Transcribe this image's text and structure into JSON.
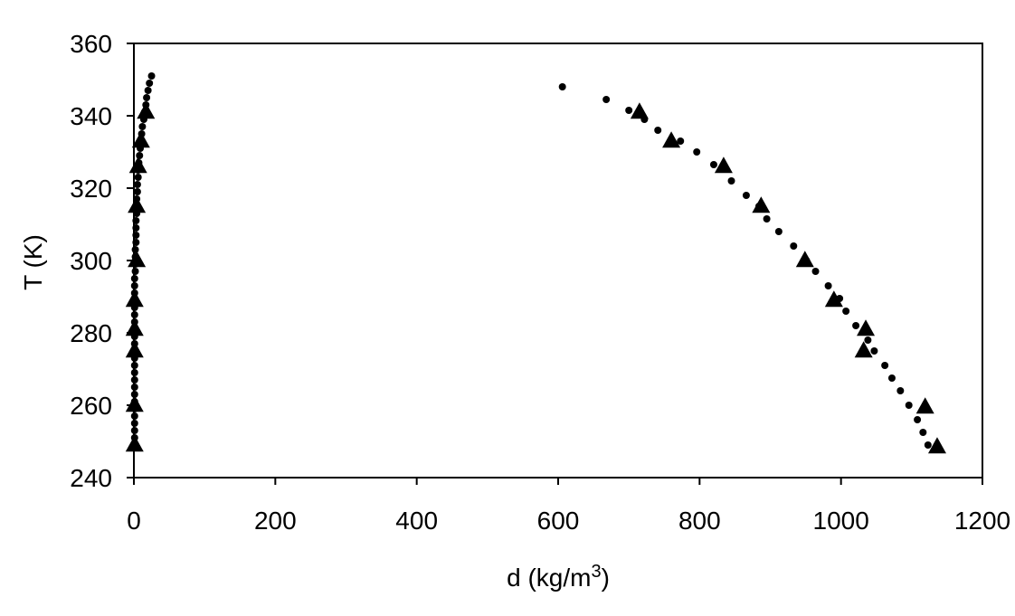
{
  "chart_data": {
    "type": "scatter",
    "xlabel": "d (kg/m",
    "xlabel_sup": "3",
    "xlabel_close": ")",
    "ylabel": "T (K)",
    "xlim": [
      0,
      1200
    ],
    "ylim": [
      240,
      360
    ],
    "x_ticks": [
      0,
      200,
      400,
      600,
      800,
      1000,
      1200
    ],
    "y_ticks": [
      240,
      260,
      280,
      300,
      320,
      340,
      360
    ],
    "grid": false,
    "legend": "none",
    "series": [
      {
        "marker": "dot",
        "color": "#000000",
        "points": [
          [
            1,
            249
          ],
          [
            1,
            251
          ],
          [
            1,
            253
          ],
          [
            1,
            255
          ],
          [
            1,
            257
          ],
          [
            1,
            259
          ],
          [
            1,
            261
          ],
          [
            1,
            263
          ],
          [
            1,
            265
          ],
          [
            1,
            267
          ],
          [
            1,
            269
          ],
          [
            1,
            271
          ],
          [
            1,
            273
          ],
          [
            1,
            275
          ],
          [
            1,
            277
          ],
          [
            1,
            279
          ],
          [
            1,
            281
          ],
          [
            1,
            283
          ],
          [
            1,
            285
          ],
          [
            1,
            287
          ],
          [
            1,
            289
          ],
          [
            1,
            291
          ],
          [
            1,
            293
          ],
          [
            1,
            295
          ],
          [
            2,
            297
          ],
          [
            2,
            299
          ],
          [
            2,
            301
          ],
          [
            2,
            303
          ],
          [
            3,
            305
          ],
          [
            3,
            307
          ],
          [
            3,
            309
          ],
          [
            3,
            311
          ],
          [
            4,
            313
          ],
          [
            4,
            315
          ],
          [
            4,
            317
          ],
          [
            5,
            319
          ],
          [
            5,
            321
          ],
          [
            6,
            323
          ],
          [
            6,
            325
          ],
          [
            7,
            327
          ],
          [
            8,
            329
          ],
          [
            9,
            331
          ],
          [
            10,
            333
          ],
          [
            11,
            335
          ],
          [
            12,
            337
          ],
          [
            14,
            339
          ],
          [
            15,
            341
          ],
          [
            17,
            343
          ],
          [
            18,
            345
          ],
          [
            20,
            347
          ],
          [
            22,
            349
          ],
          [
            25,
            351
          ],
          [
            606,
            348
          ],
          [
            668,
            344.5
          ],
          [
            700,
            341.5
          ],
          [
            722,
            339
          ],
          [
            741,
            336
          ],
          [
            773,
            333
          ],
          [
            796,
            330
          ],
          [
            820,
            326.5
          ],
          [
            845,
            322
          ],
          [
            866,
            318
          ],
          [
            884,
            315
          ],
          [
            895,
            311.5
          ],
          [
            912,
            308
          ],
          [
            933,
            304
          ],
          [
            951,
            300
          ],
          [
            964,
            297
          ],
          [
            982,
            293
          ],
          [
            998,
            289.5
          ],
          [
            1007,
            286
          ],
          [
            1021,
            282
          ],
          [
            1038,
            278
          ],
          [
            1047,
            275
          ],
          [
            1062,
            271
          ],
          [
            1072,
            267.5
          ],
          [
            1084,
            264
          ],
          [
            1096,
            260
          ],
          [
            1108,
            256
          ],
          [
            1116,
            252.5
          ],
          [
            1123,
            249
          ]
        ]
      },
      {
        "marker": "triangle",
        "color": "#000000",
        "points": [
          [
            1,
            249
          ],
          [
            1,
            260
          ],
          [
            1,
            275
          ],
          [
            1,
            281
          ],
          [
            1,
            289
          ],
          [
            4,
            300
          ],
          [
            4,
            315
          ],
          [
            6,
            326
          ],
          [
            10,
            333
          ],
          [
            17,
            341
          ],
          [
            1136,
            248.5
          ],
          [
            1119,
            259.5
          ],
          [
            1032,
            275
          ],
          [
            1035,
            281
          ],
          [
            990,
            289
          ],
          [
            949,
            300
          ],
          [
            887,
            315
          ],
          [
            834,
            326
          ],
          [
            760,
            333
          ],
          [
            715,
            341
          ]
        ]
      }
    ]
  }
}
